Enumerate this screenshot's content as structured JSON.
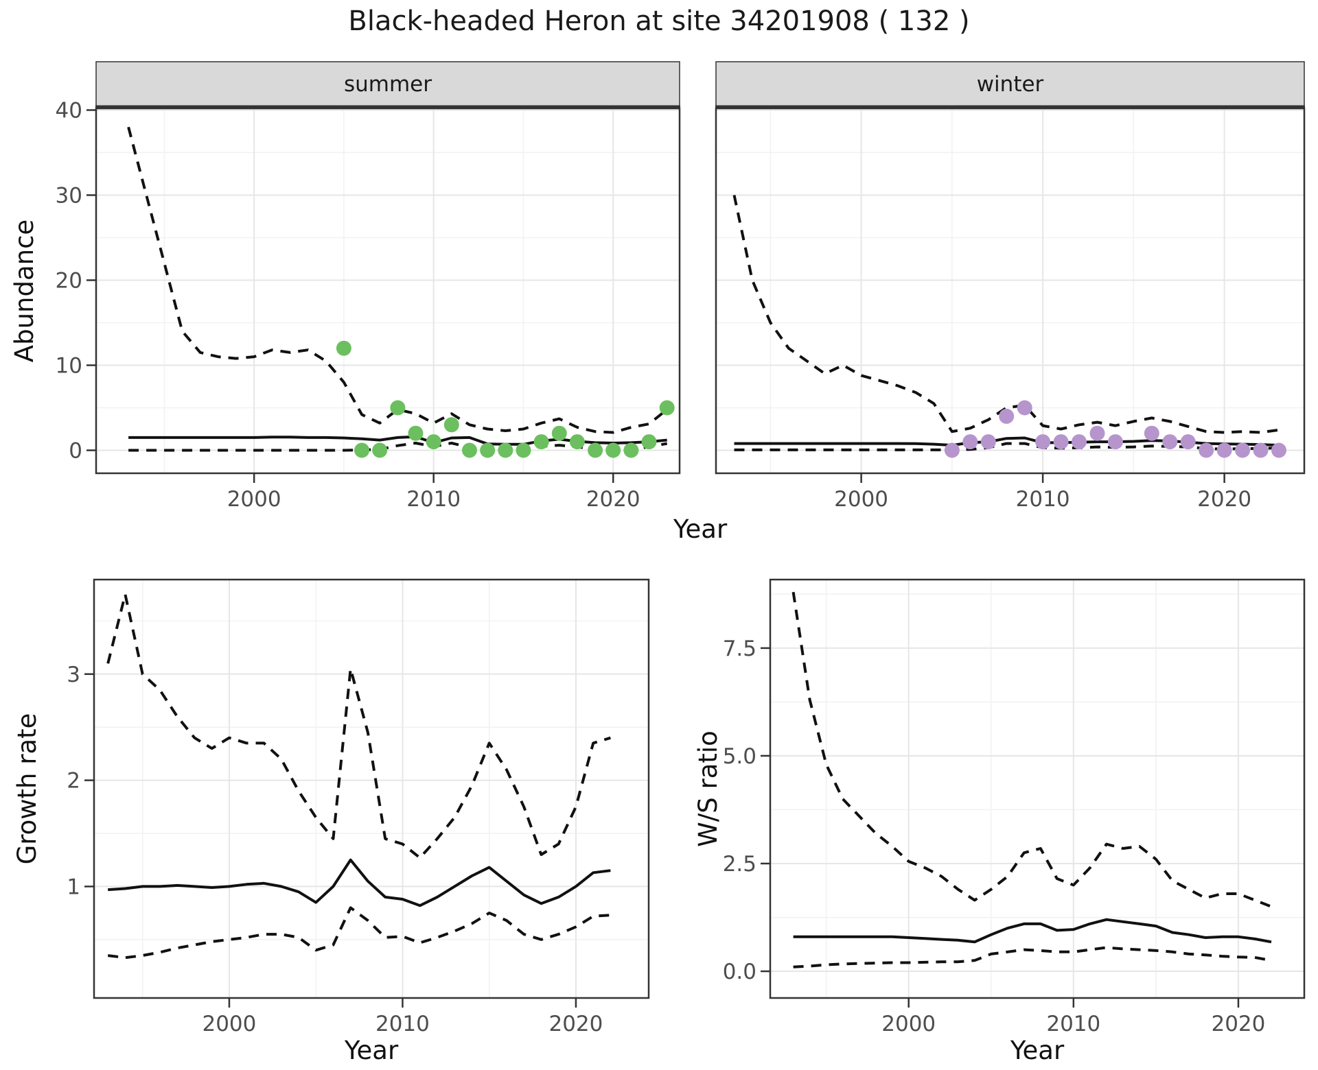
{
  "title": {
    "text": "Black-headed Heron at site 34201908 ( 132 )"
  },
  "axis_labels": {
    "x": "Year",
    "y_abundance": "Abundance",
    "y_growth": "Growth rate",
    "y_ws": "W/S ratio"
  },
  "styles": {
    "summer_point_color": "#6cbf5f",
    "winter_point_color": "#b695cd",
    "line_color": "#111111",
    "strip_bg": "#d9d9d9",
    "grid_major": "#e6e6e6",
    "grid_minor": "#f2f2f2",
    "tick_label_color": "#4d4d4d",
    "panel_border": "#333333"
  },
  "chart_data": [
    {
      "id": "abundance_summer",
      "type": "line",
      "facet_label": "summer",
      "xlabel": "Year",
      "ylabel": "Abundance",
      "xlim": [
        1991.2,
        2023.7
      ],
      "ylim": [
        -2.7,
        40.2
      ],
      "x_major_ticks": [
        2000,
        2010,
        2020
      ],
      "x_tick_labels": [
        "2000",
        "2010",
        "2020"
      ],
      "x_minor_ticks": [
        1995,
        2005,
        2015
      ],
      "y_major_ticks": [
        0,
        10,
        20,
        30,
        40
      ],
      "y_tick_labels": [
        "0",
        "10",
        "20",
        "30",
        "40"
      ],
      "y_minor_ticks": [
        5,
        15,
        25,
        35
      ],
      "years": [
        1993,
        1994,
        1995,
        1996,
        1997,
        1998,
        1999,
        2000,
        2001,
        2002,
        2003,
        2004,
        2005,
        2006,
        2007,
        2008,
        2009,
        2010,
        2011,
        2012,
        2013,
        2014,
        2015,
        2016,
        2017,
        2018,
        2019,
        2020,
        2021,
        2022,
        2023
      ],
      "series": [
        {
          "name": "upper-ci",
          "style": "dashed",
          "values": [
            38,
            30,
            22,
            14,
            11.5,
            11,
            10.8,
            11,
            11.8,
            11.5,
            11.8,
            10.5,
            8,
            4.2,
            3.2,
            4.8,
            4.3,
            3.2,
            4.3,
            3.0,
            2.5,
            2.3,
            2.5,
            3.2,
            3.7,
            2.7,
            2.2,
            2.1,
            2.7,
            3.1,
            4.8
          ]
        },
        {
          "name": "median",
          "style": "solid",
          "values": [
            1.5,
            1.5,
            1.5,
            1.5,
            1.5,
            1.5,
            1.5,
            1.5,
            1.55,
            1.55,
            1.5,
            1.5,
            1.45,
            1.35,
            1.2,
            1.5,
            1.6,
            0.9,
            1.45,
            1.5,
            0.75,
            0.7,
            0.7,
            1.1,
            1.3,
            1.05,
            0.9,
            0.85,
            0.9,
            1.0,
            1.2
          ]
        },
        {
          "name": "lower-ci",
          "style": "dashed",
          "values": [
            0,
            0,
            0,
            0,
            0,
            0,
            0,
            0,
            0,
            0,
            0,
            0,
            0,
            0.05,
            0.1,
            0.55,
            0.85,
            0.45,
            0.85,
            0.35,
            0.15,
            0.1,
            0.15,
            0.45,
            0.6,
            0.4,
            0.15,
            0.1,
            0.15,
            0.4,
            0.8
          ]
        }
      ],
      "points": {
        "name": "observed-counts",
        "color": "#6cbf5f",
        "years": [
          2005,
          2006,
          2007,
          2008,
          2009,
          2010,
          2011,
          2012,
          2013,
          2014,
          2015,
          2016,
          2017,
          2018,
          2019,
          2020,
          2021,
          2022,
          2023
        ],
        "values": [
          12,
          0,
          0,
          5,
          2,
          1,
          3,
          0,
          0,
          0,
          0,
          1,
          2,
          1,
          0,
          0,
          0,
          1,
          5
        ]
      }
    },
    {
      "id": "abundance_winter",
      "type": "line",
      "facet_label": "winter",
      "xlabel": "Year",
      "ylabel": "Abundance",
      "xlim": [
        1992.0,
        2024.4
      ],
      "ylim": [
        -2.7,
        40.2
      ],
      "x_major_ticks": [
        2000,
        2010,
        2020
      ],
      "x_tick_labels": [
        "2000",
        "2010",
        "2020"
      ],
      "x_minor_ticks": [
        1995,
        2005,
        2015
      ],
      "y_major_ticks": [
        0,
        10,
        20,
        30,
        40
      ],
      "y_tick_labels": [
        "0",
        "10",
        "20",
        "30",
        "40"
      ],
      "y_minor_ticks": [
        5,
        15,
        25,
        35
      ],
      "years": [
        1993,
        1994,
        1995,
        1996,
        1997,
        1998,
        1999,
        2000,
        2001,
        2002,
        2003,
        2004,
        2005,
        2006,
        2007,
        2008,
        2009,
        2010,
        2011,
        2012,
        2013,
        2014,
        2015,
        2016,
        2017,
        2018,
        2019,
        2020,
        2021,
        2022,
        2023
      ],
      "series": [
        {
          "name": "upper-ci",
          "style": "dashed",
          "values": [
            30,
            20,
            15,
            12,
            10.5,
            9,
            10,
            8.8,
            8.2,
            7.6,
            6.8,
            5.5,
            2.2,
            2.6,
            3.6,
            5.0,
            5.3,
            2.9,
            2.5,
            3.0,
            3.3,
            2.9,
            3.4,
            3.8,
            3.4,
            2.8,
            2.2,
            2.1,
            2.2,
            2.1,
            2.4
          ]
        },
        {
          "name": "median",
          "style": "solid",
          "values": [
            0.8,
            0.8,
            0.8,
            0.8,
            0.8,
            0.8,
            0.8,
            0.8,
            0.8,
            0.8,
            0.78,
            0.72,
            0.6,
            0.9,
            1.0,
            1.4,
            1.45,
            0.9,
            0.9,
            0.95,
            1.0,
            1.0,
            1.05,
            1.15,
            1.1,
            0.95,
            0.8,
            0.75,
            0.72,
            0.68,
            0.6
          ]
        },
        {
          "name": "lower-ci",
          "style": "dashed",
          "values": [
            0.05,
            0.05,
            0.05,
            0.05,
            0.05,
            0.05,
            0.05,
            0.05,
            0.05,
            0.05,
            0.05,
            0.05,
            0.05,
            0.1,
            0.3,
            0.8,
            0.8,
            0.3,
            0.25,
            0.3,
            0.4,
            0.35,
            0.4,
            0.5,
            0.45,
            0.4,
            0.2,
            0.15,
            0.2,
            0.2,
            0.3
          ]
        }
      ],
      "points": {
        "name": "observed-counts",
        "color": "#b695cd",
        "years": [
          2005,
          2006,
          2007,
          2008,
          2009,
          2010,
          2011,
          2012,
          2013,
          2014,
          2016,
          2017,
          2018,
          2019,
          2020,
          2021,
          2022,
          2023
        ],
        "values": [
          0,
          1,
          1,
          4,
          5,
          1,
          1,
          1,
          2,
          1,
          2,
          1,
          1,
          0,
          0,
          0,
          0,
          0
        ]
      }
    },
    {
      "id": "growth_rate",
      "type": "line",
      "facet_label": null,
      "xlabel": "Year",
      "ylabel": "Growth rate",
      "xlim": [
        1992.2,
        2024.2
      ],
      "ylim": [
        -0.05,
        3.89
      ],
      "x_major_ticks": [
        2000,
        2010,
        2020
      ],
      "x_tick_labels": [
        "2000",
        "2010",
        "2020"
      ],
      "x_minor_ticks": [
        1995,
        2005,
        2015
      ],
      "y_major_ticks": [
        1,
        2,
        3
      ],
      "y_tick_labels": [
        "1",
        "2",
        "3"
      ],
      "y_minor_ticks": [
        0.5,
        1.5,
        2.5,
        3.5
      ],
      "years": [
        1993,
        1994,
        1995,
        1996,
        1997,
        1998,
        1999,
        2000,
        2001,
        2002,
        2003,
        2004,
        2005,
        2006,
        2007,
        2008,
        2009,
        2010,
        2011,
        2012,
        2013,
        2014,
        2015,
        2016,
        2017,
        2018,
        2019,
        2020,
        2021,
        2022
      ],
      "series": [
        {
          "name": "upper-ci",
          "style": "dashed",
          "values": [
            3.1,
            3.75,
            3.0,
            2.85,
            2.6,
            2.4,
            2.3,
            2.4,
            2.35,
            2.35,
            2.2,
            1.9,
            1.65,
            1.45,
            3.05,
            2.45,
            1.45,
            1.4,
            1.27,
            1.45,
            1.65,
            1.95,
            2.35,
            2.1,
            1.75,
            1.3,
            1.4,
            1.75,
            2.35,
            2.4
          ]
        },
        {
          "name": "median",
          "style": "solid",
          "values": [
            0.97,
            0.98,
            1.0,
            1.0,
            1.01,
            1.0,
            0.99,
            1.0,
            1.02,
            1.03,
            1.0,
            0.95,
            0.85,
            1.0,
            1.25,
            1.05,
            0.9,
            0.88,
            0.82,
            0.9,
            1.0,
            1.1,
            1.18,
            1.05,
            0.92,
            0.84,
            0.9,
            1.0,
            1.13,
            1.15
          ]
        },
        {
          "name": "lower-ci",
          "style": "dashed",
          "values": [
            0.35,
            0.33,
            0.35,
            0.38,
            0.42,
            0.45,
            0.48,
            0.5,
            0.52,
            0.55,
            0.55,
            0.52,
            0.4,
            0.45,
            0.8,
            0.68,
            0.52,
            0.53,
            0.47,
            0.52,
            0.58,
            0.65,
            0.75,
            0.68,
            0.55,
            0.5,
            0.55,
            0.62,
            0.72,
            0.73
          ]
        }
      ],
      "points": null
    },
    {
      "id": "ws_ratio",
      "type": "line",
      "facet_label": null,
      "xlabel": "Year",
      "ylabel": "W/S ratio",
      "xlim": [
        1991.6,
        2024.0
      ],
      "ylim": [
        -0.62,
        9.09
      ],
      "x_major_ticks": [
        2000,
        2010,
        2020
      ],
      "x_tick_labels": [
        "2000",
        "2010",
        "2020"
      ],
      "x_minor_ticks": [
        1995,
        2005,
        2015
      ],
      "y_major_ticks": [
        0,
        2.5,
        5,
        7.5
      ],
      "y_tick_labels": [
        "0.0",
        "2.5",
        "5.0",
        "7.5"
      ],
      "y_minor_ticks": [
        1.25,
        3.75,
        6.25,
        8.75
      ],
      "years": [
        1993,
        1994,
        1995,
        1996,
        1997,
        1998,
        1999,
        2000,
        2001,
        2002,
        2003,
        2004,
        2005,
        2006,
        2007,
        2008,
        2009,
        2010,
        2011,
        2012,
        2013,
        2014,
        2015,
        2016,
        2017,
        2018,
        2019,
        2020,
        2021,
        2022
      ],
      "series": [
        {
          "name": "upper-ci",
          "style": "dashed",
          "values": [
            8.8,
            6.3,
            4.8,
            4.0,
            3.6,
            3.2,
            2.9,
            2.55,
            2.4,
            2.2,
            1.9,
            1.65,
            1.9,
            2.2,
            2.75,
            2.85,
            2.15,
            2.0,
            2.4,
            2.95,
            2.85,
            2.9,
            2.6,
            2.1,
            1.9,
            1.7,
            1.8,
            1.8,
            1.65,
            1.5
          ]
        },
        {
          "name": "median",
          "style": "solid",
          "values": [
            0.8,
            0.8,
            0.8,
            0.8,
            0.8,
            0.8,
            0.8,
            0.78,
            0.76,
            0.74,
            0.72,
            0.68,
            0.85,
            1.0,
            1.1,
            1.1,
            0.95,
            0.97,
            1.1,
            1.2,
            1.15,
            1.1,
            1.05,
            0.9,
            0.85,
            0.78,
            0.8,
            0.8,
            0.75,
            0.68
          ]
        },
        {
          "name": "lower-ci",
          "style": "dashed",
          "values": [
            0.1,
            0.12,
            0.15,
            0.17,
            0.18,
            0.19,
            0.2,
            0.2,
            0.21,
            0.22,
            0.22,
            0.25,
            0.4,
            0.45,
            0.5,
            0.48,
            0.45,
            0.45,
            0.5,
            0.55,
            0.52,
            0.5,
            0.48,
            0.45,
            0.4,
            0.38,
            0.35,
            0.33,
            0.32,
            0.25
          ]
        }
      ],
      "points": null
    }
  ]
}
